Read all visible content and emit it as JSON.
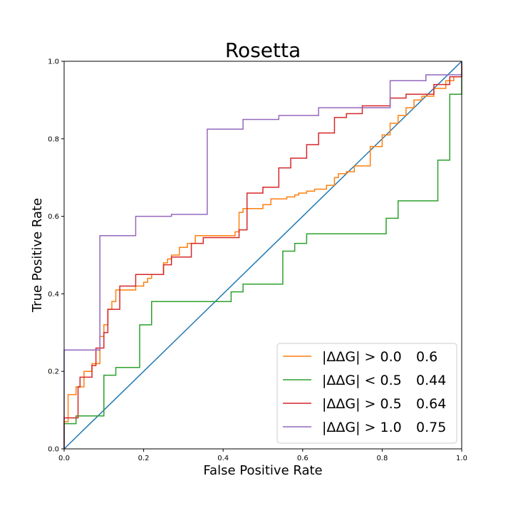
{
  "chart_data": {
    "type": "line",
    "title": "Rosetta",
    "xlabel": "False Positive Rate",
    "ylabel": "True Positive Rate",
    "xlim": [
      0,
      1
    ],
    "ylim": [
      0,
      1
    ],
    "xticks": [
      "0.0",
      "0.2",
      "0.4",
      "0.6",
      "0.8",
      "1.0"
    ],
    "yticks": [
      "0.0",
      "0.2",
      "0.4",
      "0.6",
      "0.8",
      "1.0"
    ],
    "grid": false,
    "legend_position": "lower-right",
    "series": [
      {
        "name": "|ΔΔG| > 0.0",
        "auc": "0.6",
        "color": "#ff7f0e",
        "step": true,
        "points": [
          [
            0.0,
            0.0
          ],
          [
            0.0,
            0.07
          ],
          [
            0.01,
            0.07
          ],
          [
            0.01,
            0.14
          ],
          [
            0.03,
            0.14
          ],
          [
            0.03,
            0.16
          ],
          [
            0.05,
            0.16
          ],
          [
            0.05,
            0.2
          ],
          [
            0.07,
            0.2
          ],
          [
            0.07,
            0.22
          ],
          [
            0.09,
            0.22
          ],
          [
            0.09,
            0.29
          ],
          [
            0.1,
            0.29
          ],
          [
            0.1,
            0.32
          ],
          [
            0.11,
            0.32
          ],
          [
            0.11,
            0.36
          ],
          [
            0.12,
            0.36
          ],
          [
            0.12,
            0.38
          ],
          [
            0.13,
            0.38
          ],
          [
            0.13,
            0.41
          ],
          [
            0.18,
            0.41
          ],
          [
            0.18,
            0.42
          ],
          [
            0.2,
            0.42
          ],
          [
            0.2,
            0.43
          ],
          [
            0.21,
            0.43
          ],
          [
            0.21,
            0.44
          ],
          [
            0.22,
            0.44
          ],
          [
            0.22,
            0.45
          ],
          [
            0.25,
            0.45
          ],
          [
            0.25,
            0.48
          ],
          [
            0.26,
            0.48
          ],
          [
            0.26,
            0.49
          ],
          [
            0.27,
            0.49
          ],
          [
            0.27,
            0.5
          ],
          [
            0.29,
            0.5
          ],
          [
            0.29,
            0.52
          ],
          [
            0.31,
            0.52
          ],
          [
            0.31,
            0.53
          ],
          [
            0.33,
            0.53
          ],
          [
            0.33,
            0.55
          ],
          [
            0.43,
            0.55
          ],
          [
            0.43,
            0.56
          ],
          [
            0.44,
            0.56
          ],
          [
            0.44,
            0.61
          ],
          [
            0.45,
            0.61
          ],
          [
            0.45,
            0.62
          ],
          [
            0.5,
            0.62
          ],
          [
            0.5,
            0.63
          ],
          [
            0.52,
            0.63
          ],
          [
            0.52,
            0.645
          ],
          [
            0.56,
            0.645
          ],
          [
            0.56,
            0.65
          ],
          [
            0.58,
            0.65
          ],
          [
            0.58,
            0.655
          ],
          [
            0.59,
            0.655
          ],
          [
            0.59,
            0.66
          ],
          [
            0.61,
            0.66
          ],
          [
            0.61,
            0.665
          ],
          [
            0.63,
            0.665
          ],
          [
            0.63,
            0.67
          ],
          [
            0.66,
            0.67
          ],
          [
            0.66,
            0.68
          ],
          [
            0.68,
            0.68
          ],
          [
            0.68,
            0.7
          ],
          [
            0.69,
            0.7
          ],
          [
            0.69,
            0.71
          ],
          [
            0.71,
            0.71
          ],
          [
            0.71,
            0.715
          ],
          [
            0.73,
            0.715
          ],
          [
            0.73,
            0.73
          ],
          [
            0.77,
            0.73
          ],
          [
            0.77,
            0.78
          ],
          [
            0.8,
            0.78
          ],
          [
            0.8,
            0.81
          ],
          [
            0.82,
            0.81
          ],
          [
            0.82,
            0.84
          ],
          [
            0.84,
            0.84
          ],
          [
            0.84,
            0.86
          ],
          [
            0.86,
            0.86
          ],
          [
            0.86,
            0.88
          ],
          [
            0.88,
            0.88
          ],
          [
            0.88,
            0.9
          ],
          [
            0.9,
            0.9
          ],
          [
            0.9,
            0.91
          ],
          [
            0.93,
            0.91
          ],
          [
            0.93,
            0.93
          ],
          [
            0.96,
            0.93
          ],
          [
            0.96,
            0.95
          ],
          [
            0.98,
            0.95
          ],
          [
            0.98,
            0.96
          ],
          [
            1.0,
            0.96
          ],
          [
            1.0,
            1.0
          ]
        ]
      },
      {
        "name": "|ΔΔG| < 0.5",
        "auc": "0.44",
        "color": "#2ca02c",
        "step": true,
        "points": [
          [
            0.0,
            0.0
          ],
          [
            0.0,
            0.065
          ],
          [
            0.03,
            0.065
          ],
          [
            0.03,
            0.085
          ],
          [
            0.1,
            0.085
          ],
          [
            0.1,
            0.19
          ],
          [
            0.13,
            0.19
          ],
          [
            0.13,
            0.21
          ],
          [
            0.19,
            0.21
          ],
          [
            0.19,
            0.32
          ],
          [
            0.22,
            0.32
          ],
          [
            0.22,
            0.38
          ],
          [
            0.42,
            0.38
          ],
          [
            0.42,
            0.405
          ],
          [
            0.45,
            0.405
          ],
          [
            0.45,
            0.425
          ],
          [
            0.55,
            0.425
          ],
          [
            0.55,
            0.51
          ],
          [
            0.58,
            0.51
          ],
          [
            0.58,
            0.53
          ],
          [
            0.61,
            0.53
          ],
          [
            0.61,
            0.555
          ],
          [
            0.81,
            0.555
          ],
          [
            0.81,
            0.595
          ],
          [
            0.84,
            0.595
          ],
          [
            0.84,
            0.64
          ],
          [
            0.94,
            0.64
          ],
          [
            0.94,
            0.745
          ],
          [
            0.97,
            0.745
          ],
          [
            0.97,
            0.915
          ],
          [
            1.0,
            0.915
          ],
          [
            1.0,
            1.0
          ]
        ]
      },
      {
        "name": "|ΔΔG| > 0.5",
        "auc": "0.64",
        "color": "#d62728",
        "step": true,
        "points": [
          [
            0.0,
            0.0
          ],
          [
            0.0,
            0.08
          ],
          [
            0.035,
            0.08
          ],
          [
            0.035,
            0.16
          ],
          [
            0.04,
            0.16
          ],
          [
            0.04,
            0.185
          ],
          [
            0.07,
            0.185
          ],
          [
            0.07,
            0.215
          ],
          [
            0.08,
            0.215
          ],
          [
            0.08,
            0.26
          ],
          [
            0.1,
            0.26
          ],
          [
            0.1,
            0.3
          ],
          [
            0.11,
            0.3
          ],
          [
            0.11,
            0.36
          ],
          [
            0.14,
            0.36
          ],
          [
            0.14,
            0.42
          ],
          [
            0.18,
            0.42
          ],
          [
            0.18,
            0.45
          ],
          [
            0.25,
            0.45
          ],
          [
            0.25,
            0.475
          ],
          [
            0.27,
            0.475
          ],
          [
            0.27,
            0.495
          ],
          [
            0.32,
            0.495
          ],
          [
            0.32,
            0.53
          ],
          [
            0.35,
            0.53
          ],
          [
            0.35,
            0.545
          ],
          [
            0.44,
            0.545
          ],
          [
            0.44,
            0.565
          ],
          [
            0.46,
            0.565
          ],
          [
            0.46,
            0.66
          ],
          [
            0.5,
            0.66
          ],
          [
            0.5,
            0.675
          ],
          [
            0.54,
            0.675
          ],
          [
            0.54,
            0.725
          ],
          [
            0.57,
            0.725
          ],
          [
            0.57,
            0.75
          ],
          [
            0.61,
            0.75
          ],
          [
            0.61,
            0.785
          ],
          [
            0.64,
            0.785
          ],
          [
            0.64,
            0.815
          ],
          [
            0.68,
            0.815
          ],
          [
            0.68,
            0.855
          ],
          [
            0.71,
            0.855
          ],
          [
            0.71,
            0.865
          ],
          [
            0.75,
            0.865
          ],
          [
            0.75,
            0.885
          ],
          [
            0.82,
            0.885
          ],
          [
            0.82,
            0.905
          ],
          [
            0.86,
            0.905
          ],
          [
            0.86,
            0.915
          ],
          [
            0.93,
            0.915
          ],
          [
            0.93,
            0.94
          ],
          [
            0.97,
            0.94
          ],
          [
            0.97,
            0.96
          ],
          [
            1.0,
            0.96
          ],
          [
            1.0,
            1.0
          ]
        ]
      },
      {
        "name": "|ΔΔG| > 1.0",
        "auc": "0.75",
        "color": "#9467bd",
        "step": true,
        "points": [
          [
            0.0,
            0.0
          ],
          [
            0.0,
            0.255
          ],
          [
            0.09,
            0.255
          ],
          [
            0.09,
            0.55
          ],
          [
            0.18,
            0.55
          ],
          [
            0.18,
            0.6
          ],
          [
            0.27,
            0.6
          ],
          [
            0.27,
            0.605
          ],
          [
            0.36,
            0.605
          ],
          [
            0.36,
            0.825
          ],
          [
            0.45,
            0.825
          ],
          [
            0.45,
            0.85
          ],
          [
            0.54,
            0.85
          ],
          [
            0.54,
            0.86
          ],
          [
            0.64,
            0.86
          ],
          [
            0.64,
            0.88
          ],
          [
            0.82,
            0.88
          ],
          [
            0.82,
            0.95
          ],
          [
            0.91,
            0.95
          ],
          [
            0.91,
            0.965
          ],
          [
            1.0,
            0.965
          ],
          [
            1.0,
            1.0
          ]
        ]
      },
      {
        "name": "",
        "auc": "",
        "color": "#1f77b4",
        "step": false,
        "legend": false,
        "points": [
          [
            0,
            0
          ],
          [
            1,
            1
          ]
        ]
      }
    ]
  }
}
